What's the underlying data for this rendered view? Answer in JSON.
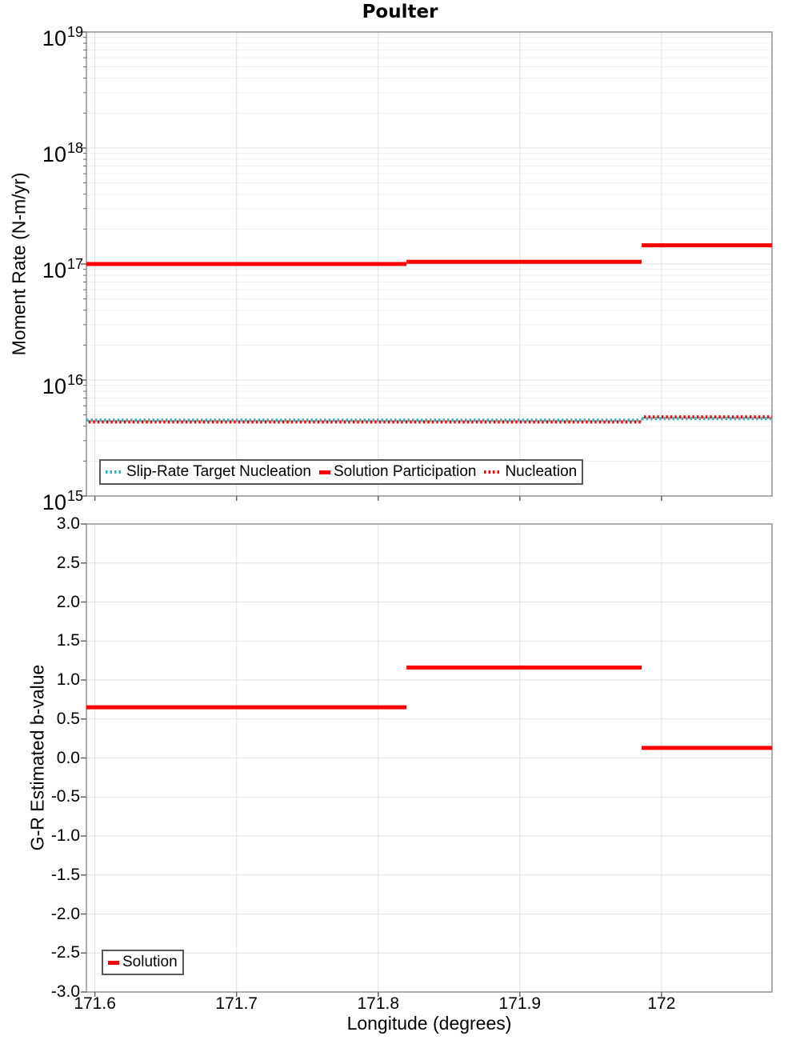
{
  "title": "Poulter",
  "chart_data": [
    {
      "type": "line",
      "title": "Poulter",
      "xlabel": "",
      "ylabel": "Moment Rate (N-m/yr)",
      "yscale": "log",
      "ylim": [
        1000000000000000.0,
        1e+19
      ],
      "y_tick_exponents": [
        19,
        18,
        17,
        16,
        15
      ],
      "xlim": [
        171.594,
        172.078
      ],
      "x_ticks": [
        171.6,
        171.7,
        171.8,
        171.9,
        172
      ],
      "x_tick_labels": [
        "171.6",
        "171.7",
        "171.8",
        "171.9",
        "172"
      ],
      "grid": true,
      "legend_position": "lower-center-inside",
      "series": [
        {
          "name": "Slip-Rate Target Nucleation",
          "style": "dotted",
          "color": "#2ab4bf",
          "segments": [
            {
              "x1": 171.594,
              "x2": 171.986,
              "y": 4500000000000000.0
            },
            {
              "x1": 171.986,
              "x2": 172.078,
              "y": 4650000000000000.0
            }
          ]
        },
        {
          "name": "Solution Participation",
          "style": "solid",
          "color": "#ff0000",
          "segments": [
            {
              "x1": 171.594,
              "x2": 171.82,
              "y": 1e+17
            },
            {
              "x1": 171.82,
              "x2": 171.986,
              "y": 1.045e+17
            },
            {
              "x1": 171.986,
              "x2": 172.078,
              "y": 1.45e+17
            }
          ]
        },
        {
          "name": "Nucleation",
          "style": "dotted",
          "color": "#ff0000",
          "segments": [
            {
              "x1": 171.594,
              "x2": 171.986,
              "y": 4350000000000000.0
            },
            {
              "x1": 171.986,
              "x2": 172.078,
              "y": 4800000000000000.0
            }
          ]
        }
      ]
    },
    {
      "type": "line",
      "title": "",
      "xlabel": "Longitude (degrees)",
      "ylabel": "G-R Estimated b-value",
      "yscale": "linear",
      "ylim": [
        -3.0,
        3.0
      ],
      "y_ticks": [
        3.0,
        2.5,
        2.0,
        1.5,
        1.0,
        0.5,
        0.0,
        -0.5,
        -1.0,
        -1.5,
        -2.0,
        -2.5,
        -3.0
      ],
      "y_tick_labels": [
        "3.0",
        "2.5",
        "2.0",
        "1.5",
        "1.0",
        "0.5",
        "0.0",
        "-0.5",
        "-1.0",
        "-1.5",
        "-2.0",
        "-2.5",
        "-3.0"
      ],
      "xlim": [
        171.594,
        172.078
      ],
      "x_ticks": [
        171.6,
        171.7,
        171.8,
        171.9,
        172
      ],
      "x_tick_labels": [
        "171.6",
        "171.7",
        "171.8",
        "171.9",
        "172"
      ],
      "grid": true,
      "legend_position": "lower-left-inside",
      "series": [
        {
          "name": "Solution",
          "style": "solid",
          "color": "#ff0000",
          "segments": [
            {
              "x1": 171.594,
              "x2": 171.82,
              "y": 0.65
            },
            {
              "x1": 171.82,
              "x2": 171.986,
              "y": 1.16
            },
            {
              "x1": 171.986,
              "x2": 172.078,
              "y": 0.13
            }
          ]
        }
      ]
    }
  ]
}
